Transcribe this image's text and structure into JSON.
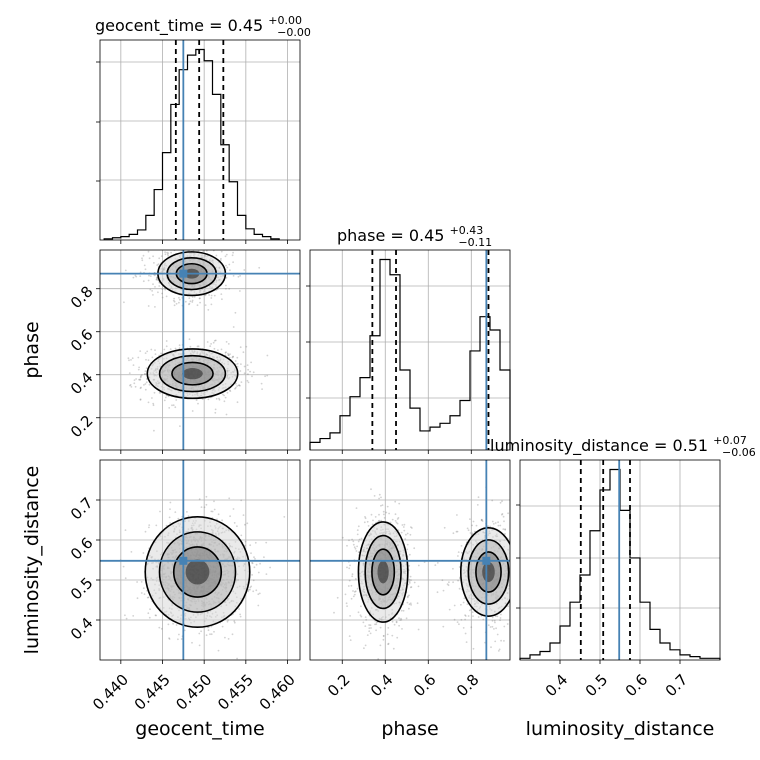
{
  "chart_data": {
    "type": "corner",
    "parameters": [
      "geocent_time",
      "phase",
      "luminosity_distance"
    ],
    "colors": {
      "truth": "#4682b4",
      "hist": "#000000",
      "quantile": "#000000",
      "grid": "#b0b0b0",
      "scatter": "#7f7f7f"
    },
    "grid": true,
    "truths": {
      "geocent_time": 0.4475,
      "phase": 0.87,
      "luminosity_distance": 0.548
    },
    "titles": [
      {
        "param": "geocent_time",
        "text": "geocent_time = 0.45",
        "plus": "+0.00",
        "minus": "−0.00"
      },
      {
        "param": "phase",
        "text": "phase = 0.45",
        "plus": "+0.43",
        "minus": "−0.11"
      },
      {
        "param": "luminosity_distance",
        "text": "luminosity_distance = 0.51",
        "plus": "+0.07",
        "minus": "−0.06"
      }
    ],
    "axis_labels": {
      "x": [
        "geocent_time",
        "phase",
        "luminosity_distance"
      ],
      "y": [
        "phase",
        "luminosity_distance"
      ]
    },
    "tick_labels": {
      "geocent_time": [
        "0.440",
        "0.445",
        "0.450",
        "0.455",
        "0.460"
      ],
      "phase_x": [
        "0.2",
        "0.4",
        "0.6",
        "0.8"
      ],
      "phase_y": [
        "0.2",
        "0.4",
        "0.6",
        "0.8"
      ],
      "luminosity_distance_x": [
        "0.4",
        "0.5",
        "0.6",
        "0.7"
      ],
      "luminosity_distance_y": [
        "0.4",
        "0.5",
        "0.6",
        "0.7"
      ]
    },
    "ranges": {
      "geocent_time": [
        0.4375,
        0.4615
      ],
      "phase": [
        0.05,
        0.98
      ],
      "luminosity_distance": [
        0.3,
        0.8
      ]
    },
    "histograms": [
      {
        "param": "geocent_time",
        "bin_start": 0.438,
        "bin_width": 0.001,
        "counts": [
          1,
          2,
          3,
          5,
          9,
          22,
          45,
          78,
          121,
          152,
          165,
          170,
          160,
          130,
          85,
          52,
          22,
          10,
          5,
          3,
          1
        ],
        "quantiles": [
          0.4466,
          0.4494,
          0.4523
        ]
      },
      {
        "param": "phase",
        "bin_start": 0.05,
        "bin_width": 0.0465,
        "counts": [
          4,
          6,
          9,
          18,
          28,
          38,
          60,
          100,
          92,
          42,
          22,
          10,
          12,
          14,
          18,
          26,
          52,
          70,
          63,
          42
        ],
        "quantiles": [
          0.34,
          0.45,
          0.88
        ]
      },
      {
        "param": "luminosity_distance",
        "bin_start": 0.3,
        "bin_width": 0.025,
        "counts": [
          1,
          3,
          5,
          10,
          20,
          34,
          50,
          76,
          100,
          112,
          88,
          60,
          34,
          18,
          10,
          6,
          3,
          2,
          1,
          1
        ],
        "quantiles": [
          0.452,
          0.508,
          0.575
        ]
      }
    ],
    "pairs": [
      {
        "x": "geocent_time",
        "y": "phase",
        "modes": [
          {
            "mx": 0.4486,
            "my": 0.405,
            "sx": 0.0026,
            "sy": 0.055,
            "w": 0.6
          },
          {
            "mx": 0.4485,
            "my": 0.87,
            "sx": 0.0022,
            "sy": 0.055,
            "w": 0.4
          }
        ]
      },
      {
        "x": "geocent_time",
        "y": "luminosity_distance",
        "modes": [
          {
            "mx": 0.4492,
            "my": 0.52,
            "sx": 0.0025,
            "sy": 0.055,
            "w": 1.0
          }
        ]
      },
      {
        "x": "phase",
        "y": "luminosity_distance",
        "modes": [
          {
            "mx": 0.39,
            "my": 0.52,
            "sx": 0.055,
            "sy": 0.06,
            "w": 0.6
          },
          {
            "mx": 0.88,
            "my": 0.52,
            "sx": 0.07,
            "sy": 0.06,
            "w": 0.4
          }
        ]
      }
    ]
  }
}
